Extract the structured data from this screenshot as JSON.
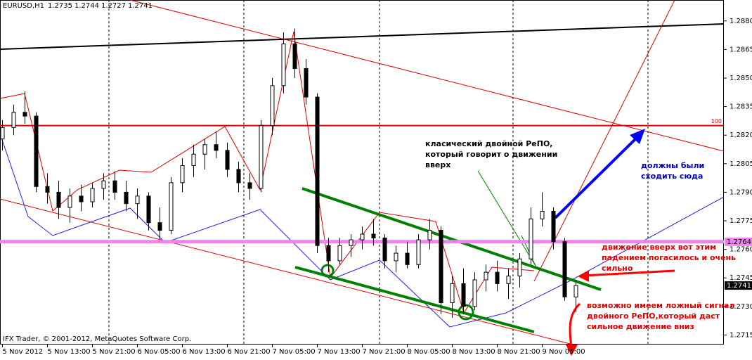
{
  "chart_data": {
    "type": "candlestick",
    "title": "EURUSD,H1",
    "footer": "IFX Trader, © 2001-2012, MetaQuotes Software Corp.",
    "categories": [
      "5 Nov 2012",
      null,
      null,
      null,
      "5 Nov 13:00",
      null,
      null,
      null,
      "5 Nov 21:00",
      null,
      null,
      null,
      "6 Nov 05:00",
      null,
      null,
      null,
      "6 Nov 13:00",
      null,
      null,
      null,
      "6 Nov 21:00",
      null,
      null,
      null,
      "7 Nov 05:00",
      null,
      null,
      null,
      "7 Nov 13:00",
      null,
      null,
      null,
      "7 Nov 21:00",
      null,
      null,
      null,
      "8 Nov 05:00",
      null,
      null,
      null,
      "8 Nov 13:00",
      null,
      null,
      null,
      "8 Nov 21:00",
      null,
      null,
      null,
      "9 Nov 05:00",
      null,
      null,
      null
    ],
    "open": [
      1.2818,
      1.2824,
      1.2832,
      1.283,
      1.2793,
      1.279,
      1.2782,
      1.2788,
      1.2785,
      1.2792,
      1.2796,
      1.279,
      1.2784,
      1.2788,
      1.2774,
      1.277,
      1.2795,
      1.2804,
      1.281,
      1.2815,
      1.2812,
      1.2802,
      1.2795,
      1.2792,
      1.2825,
      1.2846,
      1.2868,
      1.2855,
      1.284,
      1.2762,
      1.2754,
      1.2762,
      1.2765,
      1.2768,
      1.2766,
      1.2754,
      1.2758,
      1.2752,
      1.2765,
      1.277,
      1.2732,
      1.2742,
      1.273,
      1.2744,
      1.2748,
      1.2742,
      1.2746,
      1.2755,
      1.2776,
      1.278,
      1.2764,
      1.2735
    ],
    "high": [
      1.2828,
      1.2836,
      1.2843,
      1.2832,
      1.28,
      1.2796,
      1.2792,
      1.2794,
      1.2795,
      1.28,
      1.2801,
      1.2796,
      1.2792,
      1.279,
      1.2782,
      1.2798,
      1.2808,
      1.2815,
      1.2818,
      1.2822,
      1.2816,
      1.2806,
      1.28,
      1.2828,
      1.285,
      1.2874,
      1.2876,
      1.286,
      1.2842,
      1.2766,
      1.2766,
      1.2768,
      1.2772,
      1.2776,
      1.2768,
      1.2762,
      1.2764,
      1.2768,
      1.2776,
      1.2772,
      1.2746,
      1.275,
      1.2748,
      1.2752,
      1.2754,
      1.275,
      1.2758,
      1.2782,
      1.279,
      1.2782,
      1.2766,
      1.2744
    ],
    "low": [
      1.2812,
      1.282,
      1.2826,
      1.279,
      1.2784,
      1.2776,
      1.2774,
      1.278,
      1.2782,
      1.2786,
      1.2786,
      1.278,
      1.2776,
      1.277,
      1.2765,
      1.2768,
      1.279,
      1.2798,
      1.2802,
      1.2808,
      1.2798,
      1.279,
      1.2786,
      1.279,
      1.282,
      1.2842,
      1.285,
      1.2836,
      1.2758,
      1.2748,
      1.2752,
      1.2756,
      1.276,
      1.2762,
      1.275,
      1.2748,
      1.275,
      1.275,
      1.276,
      1.2726,
      1.2724,
      1.2726,
      1.2728,
      1.2738,
      1.2738,
      1.2734,
      1.274,
      1.2752,
      1.2772,
      1.276,
      1.2733,
      1.2727
    ],
    "close": [
      1.2824,
      1.2832,
      1.283,
      1.2793,
      1.279,
      1.2782,
      1.2788,
      1.2785,
      1.2792,
      1.2796,
      1.279,
      1.2784,
      1.2788,
      1.2774,
      1.277,
      1.2795,
      1.2804,
      1.281,
      1.2815,
      1.2812,
      1.2802,
      1.2795,
      1.2792,
      1.2825,
      1.2846,
      1.2868,
      1.2855,
      1.284,
      1.2762,
      1.2754,
      1.2762,
      1.2765,
      1.2768,
      1.2766,
      1.2754,
      1.2758,
      1.2752,
      1.2765,
      1.277,
      1.2732,
      1.2742,
      1.273,
      1.2744,
      1.2748,
      1.2742,
      1.2746,
      1.2755,
      1.2776,
      1.278,
      1.2764,
      1.2735,
      1.2741
    ],
    "ylim": [
      1.271,
      1.2891
    ],
    "yticks": [
      {
        "value": 1.288,
        "label": "1.2880"
      },
      1.2865,
      {
        "value": 1.285,
        "label": "1.2850"
      },
      1.2835,
      {
        "value": 1.282,
        "label": "1.2820"
      },
      1.2805,
      {
        "value": 1.279,
        "label": "1.2790"
      },
      1.2775,
      {
        "value": 1.276,
        "label": "1.2760"
      },
      1.2745,
      {
        "value": 1.273,
        "label": "1.2730"
      },
      1.2715
    ],
    "hlines": [
      {
        "value": 1.2825,
        "label": "100",
        "color": "#e00000"
      },
      {
        "value": 1.2764,
        "color": "#ee82ee"
      }
    ],
    "annotations": [
      {
        "lines": [
          "класический двойной РеПО,",
          "который говорит о движении",
          "вверх"
        ],
        "color": "#000000"
      },
      {
        "lines": [
          "должны были",
          "сходить сюда"
        ],
        "color": "#0000cc"
      },
      {
        "lines": [
          "движение вверх вот этим",
          "падением  погасилось и очень",
          "сильно"
        ],
        "color": "#e00000"
      },
      {
        "lines": [
          "возможно имеем ложный сигнал",
          "двойного РеПО,который даст",
          "сильное движение вниз"
        ],
        "color": "#e00000"
      }
    ]
  }
}
